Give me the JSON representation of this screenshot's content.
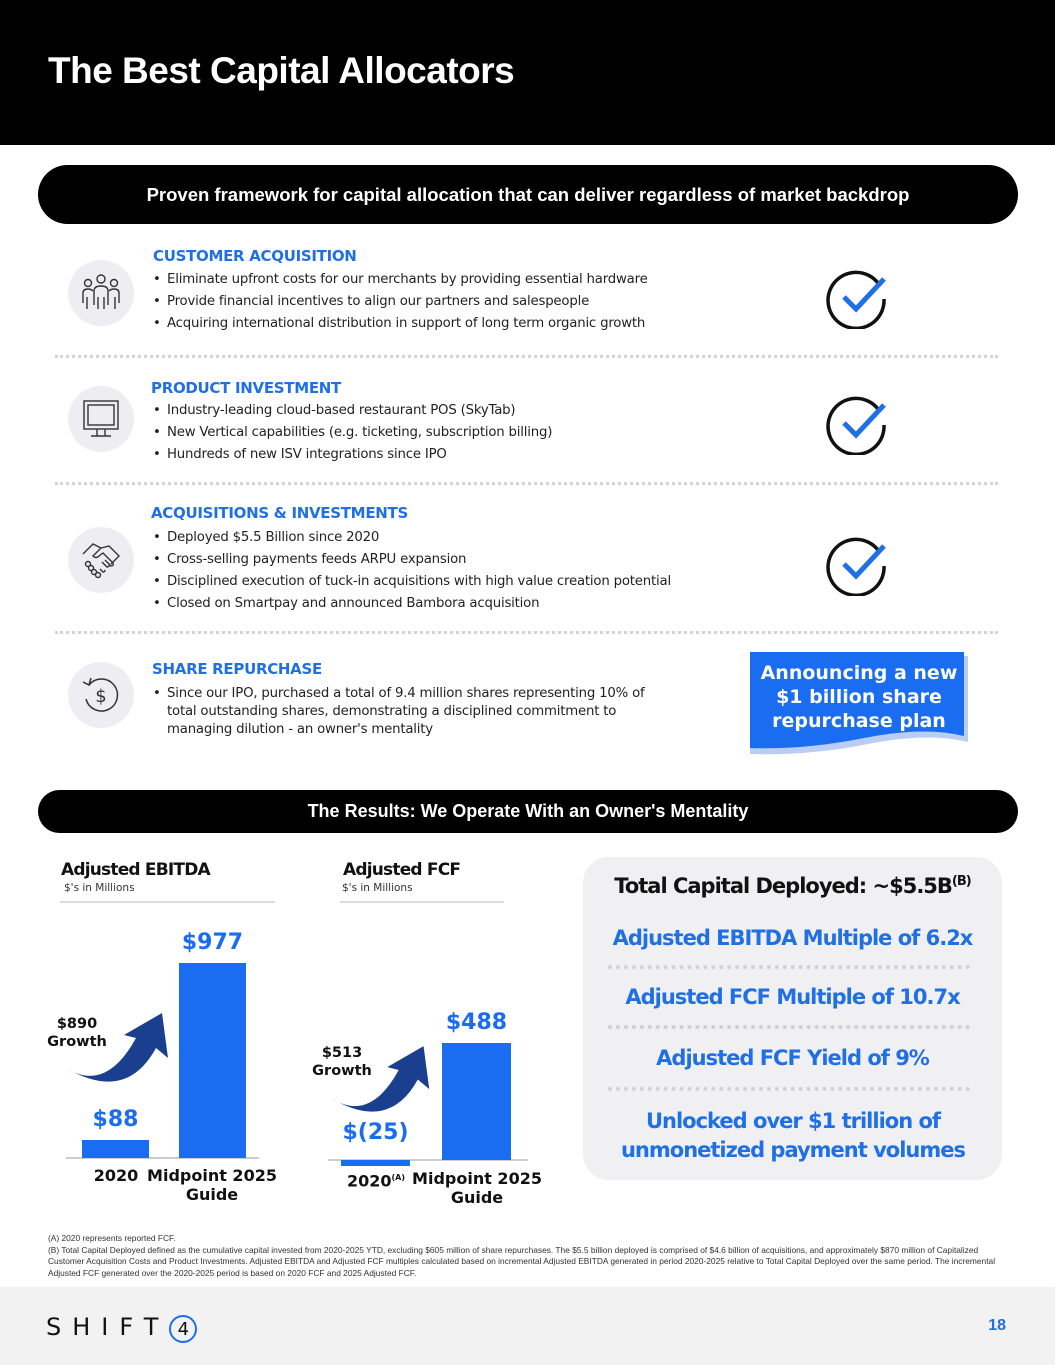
{
  "title": "The Best Capital Allocators",
  "banner1": "Proven framework for capital allocation that can deliver regardless of market backdrop",
  "banner2": "The Results: We Operate With an Owner's Mentality",
  "sections": [
    {
      "title": "CUSTOMER ACQUISITION",
      "icon": "people-group-icon",
      "bullets": [
        "Eliminate upfront costs for our merchants by providing essential hardware",
        "Provide financial incentives to align our partners and salespeople",
        "Acquiring international distribution in support of long term organic growth"
      ],
      "status": "checkmark-icon"
    },
    {
      "title": "PRODUCT INVESTMENT",
      "icon": "monitor-icon",
      "bullets": [
        "Industry-leading cloud-based restaurant POS (SkyTab)",
        "New Vertical capabilities (e.g. ticketing, subscription billing)",
        "Hundreds of new ISV integrations since IPO"
      ],
      "status": "checkmark-icon"
    },
    {
      "title": "ACQUISITIONS & INVESTMENTS",
      "icon": "handshake-icon",
      "bullets": [
        "Deployed $5.5 Billion since 2020",
        "Cross-selling payments feeds ARPU expansion",
        "Disciplined execution of tuck-in acquisitions with high value creation potential",
        "Closed on Smartpay and announced Bambora acquisition"
      ],
      "status": "checkmark-icon"
    },
    {
      "title": "SHARE REPURCHASE",
      "icon": "dollar-refresh-icon",
      "bullets": [
        "Since our IPO, purchased a total of 9.4 million shares representing 10% of total outstanding shares, demonstrating a disciplined commitment to managing dilution - an owner's mentality"
      ]
    }
  ],
  "announcement": "Announcing a new $1 billion share repurchase plan",
  "chart_data": [
    {
      "type": "bar",
      "title": "Adjusted EBITDA",
      "subtitle": "$'s in Millions",
      "categories": [
        "2020",
        "Midpoint 2025 Guide"
      ],
      "values": [
        88,
        977
      ],
      "value_labels": [
        "$88",
        "$977"
      ],
      "annotation": [
        "$890",
        "Growth"
      ]
    },
    {
      "type": "bar",
      "title": "Adjusted FCF",
      "subtitle": "$'s in Millions",
      "categories": [
        "2020",
        "Midpoint 2025 Guide"
      ],
      "category_superscripts": [
        "(A)",
        ""
      ],
      "values": [
        -25,
        488
      ],
      "value_labels": [
        "$(25)",
        "$488"
      ],
      "annotation": [
        "$513",
        "Growth"
      ]
    }
  ],
  "panel": {
    "title": "Total Capital Deployed: ~$5.5B",
    "title_sup": "(B)",
    "items": [
      "Adjusted EBITDA Multiple of 6.2x",
      "Adjusted FCF Multiple of 10.7x",
      "Adjusted FCF Yield of 9%",
      "Unlocked over $1 trillion of unmonetized payment volumes"
    ]
  },
  "footnotes": [
    "(A) 2020 represents reported FCF.",
    "(B) Total Capital Deployed defined as the cumulative capital invested from 2020-2025 YTD, excluding $605 million of share repurchases. The $5.5 billion deployed is comprised of $4.6 billion of acquisitions, and approximately $870 million of Capitalized Customer Acquisition Costs and Product Investments. Adjusted EBITDA and Adjusted FCF multiples calculated based on incremental Adjusted EBITDA generated in period 2020-2025 relative to Total Capital Deployed over the same period. The incremental Adjusted FCF generated over the 2020-2025 period is based on 2020 FCF and 2025 Adjusted FCF."
  ],
  "footer": {
    "logo": "SHIFT4",
    "page": "18"
  },
  "colors": {
    "accent": "#1f6fe5",
    "bar": "#1a6cf0",
    "arrow": "#1a3f8f"
  }
}
